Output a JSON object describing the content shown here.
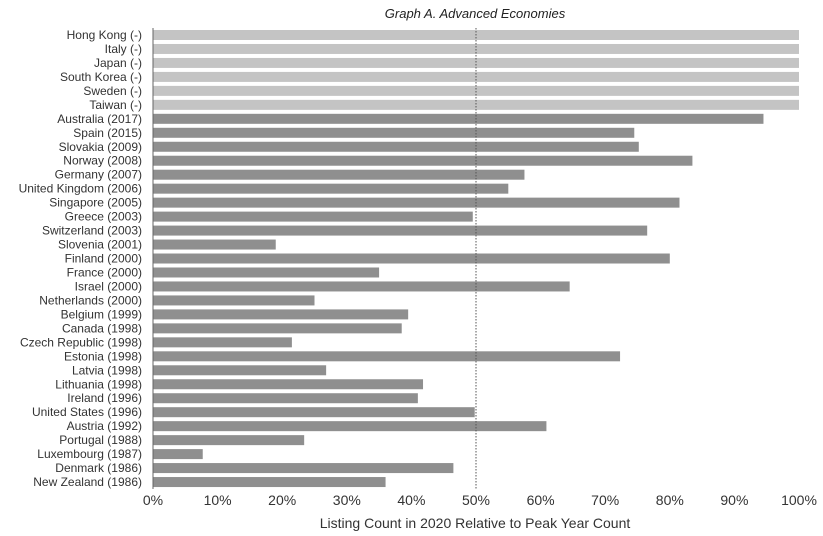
{
  "chart_data": {
    "type": "bar",
    "orientation": "horizontal",
    "title": "Graph A. Advanced Economies",
    "xlabel": "Listing Count in 2020 Relative to Peak Year Count",
    "ylabel": "",
    "xlim": [
      0,
      100
    ],
    "x_ticks": [
      "0%",
      "10%",
      "20%",
      "30%",
      "40%",
      "50%",
      "60%",
      "70%",
      "80%",
      "90%",
      "100%"
    ],
    "reference_line": {
      "value": 50,
      "style": "dotted"
    },
    "grid": false,
    "colors": {
      "at_peak": "#c4c4c4",
      "below_peak": "#8f8f8f",
      "reference_line": "#555555"
    },
    "categories": [
      "Hong Kong (-)",
      "Italy (-)",
      "Japan (-)",
      "South Korea (-)",
      "Sweden (-)",
      "Taiwan (-)",
      "Australia (2017)",
      "Spain (2015)",
      "Slovakia (2009)",
      "Norway (2008)",
      "Germany (2007)",
      "United Kingdom (2006)",
      "Singapore (2005)",
      "Greece (2003)",
      "Switzerland (2003)",
      "Slovenia (2001)",
      "Finland (2000)",
      "France (2000)",
      "Israel (2000)",
      "Netherlands (2000)",
      "Belgium (1999)",
      "Canada (1998)",
      "Czech Republic (1998)",
      "Estonia (1998)",
      "Latvia (1998)",
      "Lithuania (1998)",
      "Ireland (1996)",
      "United States (1996)",
      "Austria (1992)",
      "Portugal (1988)",
      "Luxembourg (1987)",
      "Denmark (1986)",
      "New Zealand (1986)"
    ],
    "values": [
      100,
      100,
      100,
      100,
      100,
      100,
      94.5,
      74.5,
      75.2,
      83.5,
      57.5,
      55,
      81.5,
      49.5,
      76.5,
      19,
      80,
      35,
      64.5,
      25,
      39.5,
      38.5,
      21.5,
      72.3,
      26.8,
      41.8,
      41,
      49.8,
      60.9,
      23.4,
      7.7,
      46.5,
      36
    ]
  }
}
